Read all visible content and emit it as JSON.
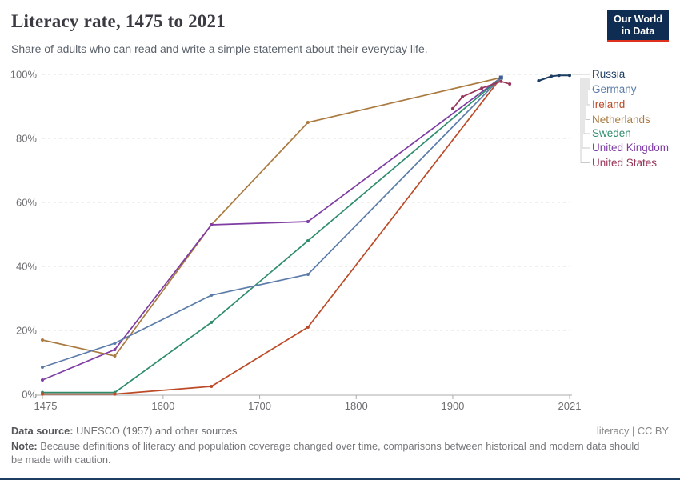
{
  "header": {
    "title": "Literacy rate, 1475 to 2021",
    "subtitle": "Share of adults who can read and write a simple statement about their everyday life.",
    "logo": {
      "line1": "Our World",
      "line2": "in Data"
    }
  },
  "colors": {
    "logo_bg": "#0f2d52",
    "logo_accent": "#e0301e",
    "gridline": "#dcdcdc",
    "axis": "#ababab",
    "tick_label": "#6e6e73",
    "connector": "#c9c9c9"
  },
  "chart_data": {
    "type": "line",
    "title": "Literacy rate, 1475 to 2021",
    "xlabel": "",
    "ylabel": "",
    "xlim": [
      1475,
      2021
    ],
    "ylim": [
      0,
      100
    ],
    "x_ticks": [
      1475,
      1600,
      1700,
      1800,
      1900,
      2021
    ],
    "y_ticks": [
      0,
      20,
      40,
      60,
      80,
      100
    ],
    "y_tick_suffix": "%",
    "grid": "horizontal-dashed",
    "legend_position": "right",
    "series": [
      {
        "name": "Russia",
        "color": "#1d3d63",
        "points": [
          [
            1989,
            98
          ],
          [
            2002,
            99.4
          ],
          [
            2010,
            99.7
          ],
          [
            2021,
            99.7
          ]
        ]
      },
      {
        "name": "Germany",
        "color": "#5b7ca9",
        "points": [
          [
            1475,
            8.5
          ],
          [
            1550,
            16
          ],
          [
            1650,
            31
          ],
          [
            1750,
            37.5
          ],
          [
            1950,
            99
          ]
        ]
      },
      {
        "name": "Ireland",
        "color": "#bc4a27",
        "points": [
          [
            1475,
            0.1
          ],
          [
            1550,
            0.1
          ],
          [
            1650,
            2.5
          ],
          [
            1750,
            21
          ],
          [
            1950,
            99
          ]
        ]
      },
      {
        "name": "Netherlands",
        "color": "#aa7b41",
        "points": [
          [
            1475,
            17
          ],
          [
            1550,
            12
          ],
          [
            1650,
            53
          ],
          [
            1750,
            85
          ],
          [
            1950,
            99
          ]
        ]
      },
      {
        "name": "Sweden",
        "color": "#2f8d6f",
        "points": [
          [
            1475,
            0.6
          ],
          [
            1550,
            0.6
          ],
          [
            1650,
            22.5
          ],
          [
            1750,
            48
          ],
          [
            1950,
            99
          ]
        ]
      },
      {
        "name": "United Kingdom",
        "color": "#7f3ca3",
        "points": [
          [
            1475,
            4.5
          ],
          [
            1550,
            14
          ],
          [
            1650,
            53
          ],
          [
            1750,
            54
          ],
          [
            1950,
            99
          ]
        ]
      },
      {
        "name": "United States",
        "color": "#98355a",
        "points": [
          [
            1900,
            89.3
          ],
          [
            1910,
            93
          ],
          [
            1930,
            95.7
          ],
          [
            1950,
            97.8
          ],
          [
            1959,
            97
          ]
        ]
      }
    ]
  },
  "footer": {
    "source_label": "Data source:",
    "source_text": " UNESCO (1957) and other sources",
    "license": "literacy | CC BY",
    "note_label": "Note:",
    "note_text": " Because definitions of literacy and population coverage changed over time, comparisons between historical and modern data should be made with caution."
  }
}
